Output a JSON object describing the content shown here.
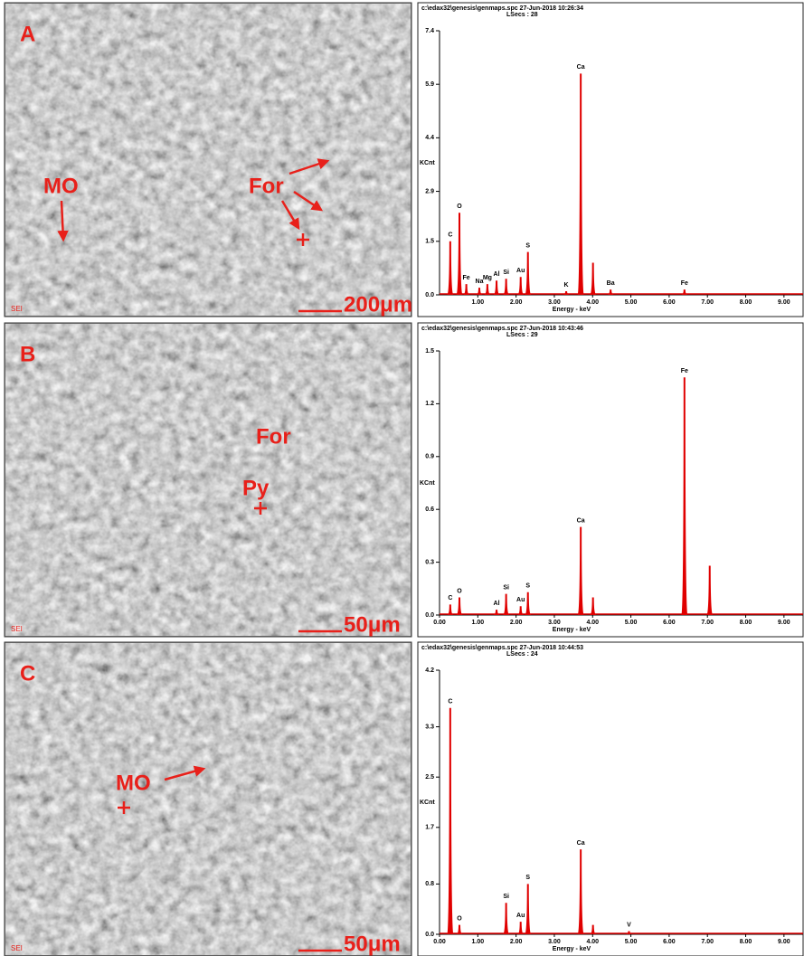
{
  "figure": {
    "panels": [
      {
        "letter": "A",
        "annotations": [
          "MO",
          "For"
        ],
        "scale_bar": "200μm",
        "detector": "SEI"
      },
      {
        "letter": "B",
        "annotations": [
          "For",
          "Py"
        ],
        "scale_bar": "50μm",
        "detector": "SEI"
      },
      {
        "letter": "C",
        "annotations": [
          "MO"
        ],
        "scale_bar": "50μm",
        "detector": "SEI"
      }
    ]
  },
  "chart_data": [
    {
      "type": "spectrum",
      "file": "c:\\edax32\\genesis\\genmaps.spc 27-Jun-2018 10:26:34",
      "subtitle": "LSecs : 28",
      "y_label": "KCnt",
      "x_label": "Energy - keV",
      "color": "#e00000",
      "x": [
        0.28,
        0.52,
        0.7,
        1.04,
        1.25,
        1.49,
        1.74,
        2.12,
        2.31,
        3.31,
        3.69,
        4.01,
        4.47,
        6.4
      ],
      "values": [
        1.5,
        2.3,
        0.3,
        0.2,
        0.3,
        0.4,
        0.45,
        0.5,
        1.2,
        0.1,
        6.2,
        0.9,
        0.15,
        0.15
      ],
      "labels": [
        "C",
        "O",
        "Fe",
        "Na",
        "Mg",
        "Al",
        "Si",
        "Au",
        "S",
        "K",
        "Ca",
        null,
        "Ba",
        "Fe"
      ],
      "xlim": [
        0,
        9.5
      ],
      "ylim": [
        0,
        7.4
      ],
      "yticks": [
        {
          "value": 0,
          "label": "0.0"
        },
        1.5,
        2.9,
        4.4,
        5.9,
        7.4
      ],
      "xticks": [
        {
          "value": 1,
          "label": "1.00"
        },
        {
          "value": 2,
          "label": "2.00"
        },
        {
          "value": 3,
          "label": "3.00"
        },
        {
          "value": 4,
          "label": "4.00"
        },
        {
          "value": 5,
          "label": "5.00"
        },
        {
          "value": 6,
          "label": "6.00"
        },
        {
          "value": 7,
          "label": "7.00"
        },
        {
          "value": 8,
          "label": "8.00"
        },
        {
          "value": 9,
          "label": "9.00"
        }
      ]
    },
    {
      "type": "spectrum",
      "file": "c:\\edax32\\genesis\\genmaps.spc 27-Jun-2018 10:43:46",
      "subtitle": "LSecs : 29",
      "y_label": "KCnt",
      "x_label": "Energy - keV",
      "color": "#e00000",
      "x": [
        0.28,
        0.52,
        1.49,
        1.74,
        2.12,
        2.31,
        3.69,
        4.01,
        6.4,
        7.06
      ],
      "values": [
        0.06,
        0.1,
        0.03,
        0.12,
        0.05,
        0.13,
        0.5,
        0.1,
        1.35,
        0.28
      ],
      "labels": [
        "C",
        "O",
        "Al",
        "Si",
        "Au",
        "S",
        "Ca",
        null,
        "Fe",
        null
      ],
      "xlim": [
        0,
        9.5
      ],
      "ylim": [
        0,
        1.5
      ],
      "yticks": [
        {
          "value": 0,
          "label": "0.0"
        },
        0.3,
        0.6,
        0.9,
        1.2,
        1.5
      ],
      "xticks": [
        {
          "value": 0,
          "label": "0.00"
        },
        {
          "value": 1,
          "label": "1.00"
        },
        {
          "value": 2,
          "label": "2.00"
        },
        {
          "value": 3,
          "label": "3.00"
        },
        {
          "value": 4,
          "label": "4.00"
        },
        {
          "value": 5,
          "label": "5.00"
        },
        {
          "value": 6,
          "label": "6.00"
        },
        {
          "value": 7,
          "label": "7.00"
        },
        {
          "value": 8,
          "label": "8.00"
        },
        {
          "value": 9,
          "label": "9.00"
        }
      ]
    },
    {
      "type": "spectrum",
      "file": "c:\\edax32\\genesis\\genmaps.spc 27-Jun-2018 10:44:53",
      "subtitle": "LSecs : 24",
      "y_label": "KCnt",
      "x_label": "Energy - keV",
      "color": "#e00000",
      "x": [
        0.28,
        0.52,
        1.74,
        2.12,
        2.31,
        3.69,
        4.01,
        4.95
      ],
      "values": [
        3.6,
        0.15,
        0.5,
        0.2,
        0.8,
        1.35,
        0.15,
        0.05
      ],
      "labels": [
        "C",
        "O",
        "Si",
        "Au",
        "S",
        "Ca",
        null,
        "V"
      ],
      "xlim": [
        0,
        9.5
      ],
      "ylim": [
        0,
        4.2
      ],
      "yticks": [
        {
          "value": 0,
          "label": "0.0"
        },
        0.8,
        1.7,
        2.5,
        3.3,
        4.2
      ],
      "xticks": [
        {
          "value": 0,
          "label": "0.00"
        },
        {
          "value": 1,
          "label": "1.00"
        },
        {
          "value": 2,
          "label": "2.00"
        },
        {
          "value": 3,
          "label": "3.00"
        },
        {
          "value": 4,
          "label": "4.00"
        },
        {
          "value": 5,
          "label": "5.00"
        },
        {
          "value": 6,
          "label": "6.00"
        },
        {
          "value": 7,
          "label": "7.00"
        },
        {
          "value": 8,
          "label": "8.00"
        },
        {
          "value": 9,
          "label": "9.00"
        }
      ]
    }
  ]
}
